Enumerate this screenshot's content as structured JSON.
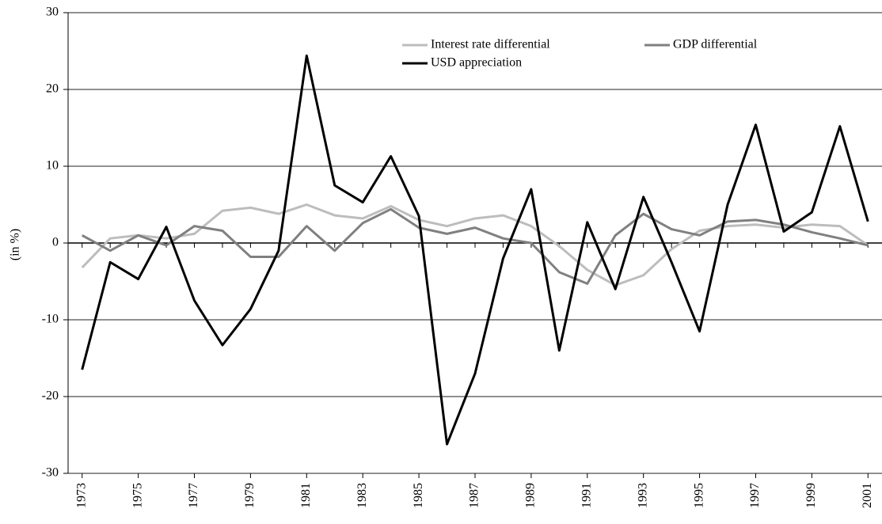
{
  "chart_data": {
    "type": "line",
    "y_label": "(in %)",
    "x": [
      1973,
      1974,
      1975,
      1976,
      1977,
      1978,
      1979,
      1980,
      1981,
      1982,
      1983,
      1984,
      1985,
      1986,
      1987,
      1988,
      1989,
      1990,
      1991,
      1992,
      1993,
      1994,
      1995,
      1996,
      1997,
      1998,
      1999,
      2000,
      2001
    ],
    "series": [
      {
        "name": "Interest rate differential",
        "color": "#bdbdbd",
        "values": [
          -3.2,
          0.6,
          1,
          0.6,
          1.2,
          4.2,
          4.6,
          3.8,
          5,
          3.6,
          3.2,
          4.8,
          3,
          2.2,
          3.2,
          3.6,
          2.2,
          -0.4,
          -3.5,
          -5.5,
          -4.2,
          -0.8,
          1.6,
          2.2,
          2.4,
          2,
          2.4,
          2.2,
          -0.3
        ]
      },
      {
        "name": "GDP differential",
        "color": "#808080",
        "values": [
          1,
          -1,
          1,
          -0.3,
          2.2,
          1.6,
          -1.8,
          -1.8,
          2.2,
          -1,
          2.6,
          4.4,
          2,
          1.2,
          2,
          0.6,
          0,
          -3.8,
          -5.3,
          1,
          3.8,
          1.8,
          1,
          2.8,
          3,
          2.4,
          1.4,
          0.6,
          -0.3
        ]
      },
      {
        "name": "USD appreciation",
        "color": "#000000",
        "values": [
          -16.5,
          -2.5,
          -4.7,
          2.1,
          -7.5,
          -13.3,
          -8.6,
          -1,
          24.4,
          7.5,
          5.3,
          11.3,
          3.5,
          -26.2,
          -17,
          -2,
          7,
          -14,
          2.7,
          -6,
          6,
          -2.5,
          -11.5,
          5,
          15.4,
          1.5,
          4,
          15.2,
          2.8
        ]
      }
    ],
    "xlim": [
      1972.5,
      2001.5
    ],
    "xticks": [
      1973,
      1975,
      1977,
      1979,
      1981,
      1983,
      1985,
      1987,
      1989,
      1991,
      1993,
      1995,
      1997,
      1999,
      2001
    ],
    "ylim": [
      -30,
      30
    ],
    "yticks": [
      -30,
      -20,
      -10,
      0,
      10,
      20,
      30
    ],
    "grid": true
  }
}
